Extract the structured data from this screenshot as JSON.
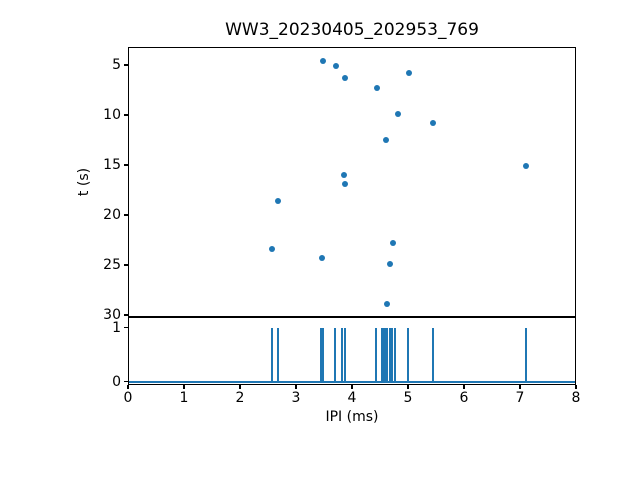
{
  "figure": {
    "title": "WW3_20230405_202953_769"
  },
  "chart_data": [
    {
      "type": "scatter",
      "title": "WW3_20230405_202953_769",
      "xlabel": "",
      "ylabel": "t (s)",
      "x": [
        3.49,
        3.71,
        5.01,
        3.88,
        4.45,
        4.83,
        5.45,
        4.6,
        7.11,
        3.85,
        3.88,
        2.68,
        4.74,
        2.58,
        3.46,
        4.67,
        4.63
      ],
      "y": [
        4.6,
        5.1,
        5.8,
        6.3,
        7.3,
        9.9,
        10.8,
        12.5,
        15.1,
        16.0,
        16.9,
        18.6,
        22.8,
        23.4,
        24.3,
        24.9,
        28.9
      ],
      "xlim": [
        0,
        8
      ],
      "ylim": [
        3.2,
        30.2
      ],
      "y_inverted": true,
      "yticks": [
        5,
        10,
        15,
        20,
        25,
        30
      ],
      "grid": "off",
      "legend": "none",
      "marker_color": "#1f77b4"
    },
    {
      "type": "line",
      "subtype": "spike-train",
      "xlabel": "IPI (ms)",
      "ylabel": "",
      "x": [
        2.57,
        2.68,
        3.45,
        3.48,
        3.69,
        3.82,
        3.88,
        4.43,
        4.53,
        4.57,
        4.6,
        4.63,
        4.67,
        4.72,
        4.77,
        5.0,
        5.45,
        7.1
      ],
      "spike_low": 0,
      "spike_high": 1,
      "xlim": [
        0,
        8
      ],
      "ylim": [
        -0.06,
        1.2
      ],
      "xticks": [
        0,
        1,
        2,
        3,
        4,
        5,
        6,
        7,
        8
      ],
      "yticks": [
        0,
        1
      ],
      "grid": "off",
      "legend": "none",
      "line_color": "#1f77b4"
    }
  ]
}
